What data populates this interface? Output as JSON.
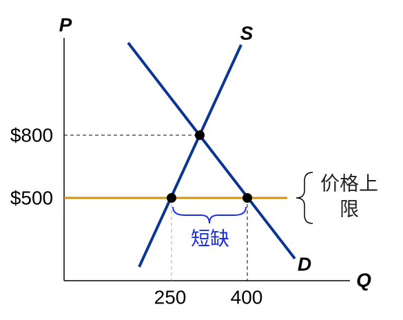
{
  "axes": {
    "y_label": "P",
    "x_label": "Q"
  },
  "curves": {
    "supply": "S",
    "demand": "D"
  },
  "price_labels": [
    "$800",
    "$500"
  ],
  "quantity_labels": [
    "250",
    "400"
  ],
  "annotations": {
    "ceiling": [
      "价格上",
      "限"
    ],
    "shortage": "短缺"
  }
}
